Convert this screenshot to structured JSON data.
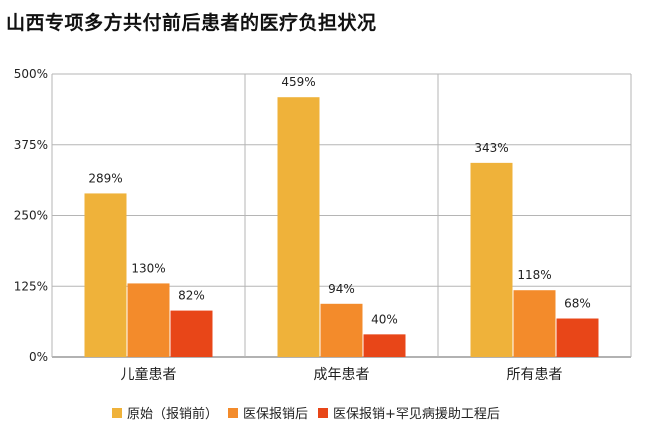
{
  "title": "山西专项多方共付前后患者的医疗负担状况",
  "chart_data": {
    "type": "bar",
    "categories": [
      "儿童患者",
      "成年患者",
      "所有患者"
    ],
    "series": [
      {
        "name": "原始（报销前）",
        "values": [
          289,
          459,
          343
        ],
        "labels": [
          "289%",
          "459%",
          "343%"
        ],
        "color": "#EFB23A"
      },
      {
        "name": "医保报销后",
        "values": [
          130,
          94,
          118
        ],
        "labels": [
          "130%",
          "94%",
          "118%"
        ],
        "color": "#F38B2B"
      },
      {
        "name": "医保报销+罕见病援助工程后",
        "values": [
          82,
          40,
          68
        ],
        "labels": [
          "82%",
          "40%",
          "68%"
        ],
        "color": "#E84618"
      }
    ],
    "ylim": [
      0,
      500
    ],
    "yticks": [
      0,
      125,
      250,
      375,
      500
    ],
    "ytick_labels": [
      "0%",
      "125%",
      "250%",
      "375%",
      "500%"
    ],
    "grid": true,
    "legend": "bottom"
  }
}
